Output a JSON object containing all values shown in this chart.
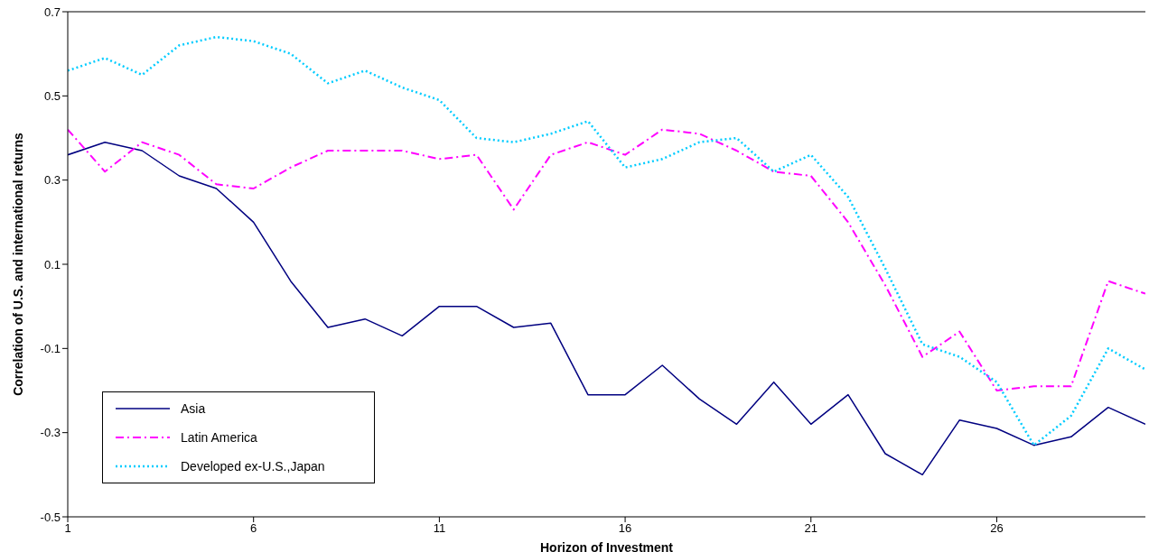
{
  "chart_data": {
    "type": "line",
    "xlabel": "Horizon of Investment",
    "ylabel": "Correlation of U.S. and international returns",
    "x": [
      1,
      2,
      3,
      4,
      5,
      6,
      7,
      8,
      9,
      10,
      11,
      12,
      13,
      14,
      15,
      16,
      17,
      18,
      19,
      20,
      21,
      22,
      23,
      24,
      25,
      26,
      27,
      28,
      29,
      30
    ],
    "xlim": [
      1,
      30
    ],
    "xticks": [
      1,
      6,
      11,
      16,
      21,
      26
    ],
    "ylim": [
      -0.5,
      0.7
    ],
    "yticks": [
      -0.5,
      -0.3,
      -0.1,
      0.1,
      0.3,
      0.5,
      0.7
    ],
    "grid": false,
    "legend": "bottom left",
    "marker": "none",
    "series": [
      {
        "name": "Asia",
        "color": "#000080",
        "line_style": "solid",
        "values": [
          0.36,
          0.39,
          0.37,
          0.31,
          0.28,
          0.2,
          0.06,
          -0.05,
          -0.03,
          -0.07,
          0,
          0,
          -0.05,
          -0.04,
          -0.21,
          -0.21,
          -0.14,
          -0.22,
          -0.28,
          -0.18,
          -0.28,
          -0.21,
          -0.35,
          -0.4,
          -0.27,
          -0.29,
          -0.33,
          -0.31,
          -0.24,
          -0.28
        ]
      },
      {
        "name": "Latin America",
        "color": "#ff00ff",
        "line_style": "dashed",
        "values": [
          0.42,
          0.32,
          0.39,
          0.36,
          0.29,
          0.28,
          0.33,
          0.37,
          0.37,
          0.37,
          0.35,
          0.36,
          0.23,
          0.36,
          0.39,
          0.36,
          0.42,
          0.41,
          0.37,
          0.32,
          0.31,
          0.2,
          0.05,
          -0.12,
          -0.06,
          -0.2,
          -0.19,
          -0.19,
          0.06,
          0.03
        ]
      },
      {
        "name": "Developed ex-U.S.,Japan",
        "color": "#00ccff",
        "line_style": "dotted",
        "values": [
          0.56,
          0.59,
          0.55,
          0.62,
          0.64,
          0.63,
          0.6,
          0.53,
          0.56,
          0.52,
          0.49,
          0.4,
          0.39,
          0.41,
          0.44,
          0.33,
          0.35,
          0.39,
          0.4,
          0.32,
          0.36,
          0.26,
          0.09,
          -0.09,
          -0.12,
          -0.18,
          -0.33,
          -0.26,
          -0.1,
          -0.15
        ]
      }
    ]
  }
}
